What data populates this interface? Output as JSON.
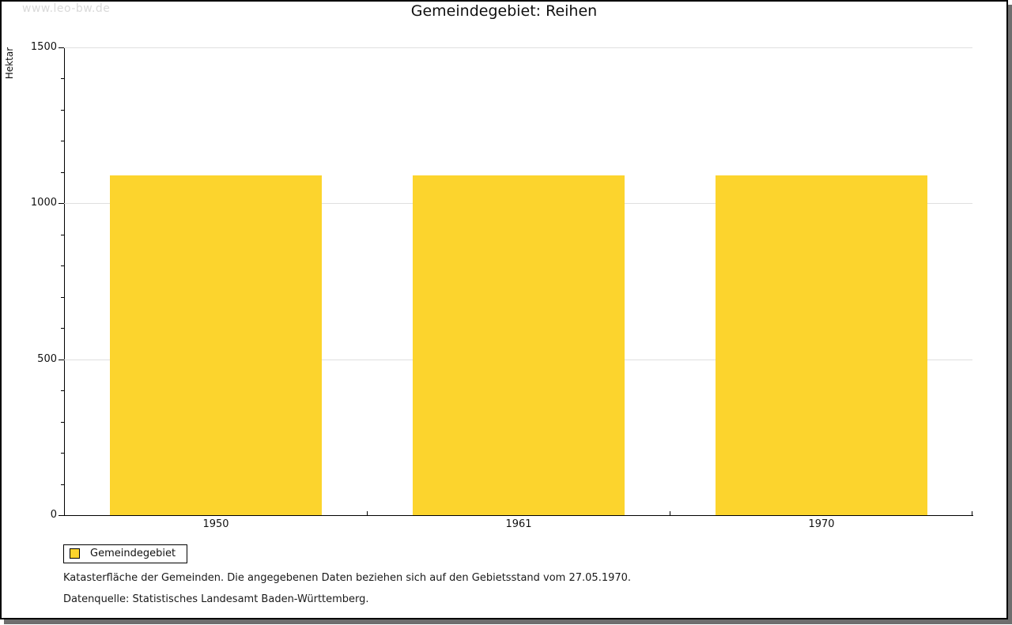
{
  "watermark": "www.leo-bw.de",
  "title": "Gemeindegebiet: Reihen",
  "chart_data": {
    "type": "bar",
    "title": "Gemeindegebiet: Reihen",
    "categories": [
      "1950",
      "1961",
      "1970"
    ],
    "series": [
      {
        "name": "Gemeindegebiet",
        "values": [
          1089,
          1089,
          1089
        ]
      }
    ],
    "xlabel": "",
    "ylabel": "Hektar",
    "ylim": [
      0,
      1500
    ],
    "ytick_major": 500,
    "ytick_minor": 100,
    "grid": "horizontal-major",
    "legend_position": "bottom-left",
    "bar_color": "#fcd42d"
  },
  "legend": {
    "items": [
      {
        "label": "Gemeindegebiet",
        "color": "#fcd42d"
      }
    ]
  },
  "footnotes": [
    "Katasterfläche der Gemeinden. Die angegebenen Daten beziehen sich auf den Gebietsstand vom 27.05.1970.",
    "Datenquelle: Statistisches Landesamt Baden-Württemberg."
  ],
  "colors": {
    "bar": "#fcd42d",
    "gridline": "#e0e0e0",
    "axis": "#000000",
    "watermark": "#d9d9d9",
    "frame_shadow": "#6e6e6e"
  }
}
